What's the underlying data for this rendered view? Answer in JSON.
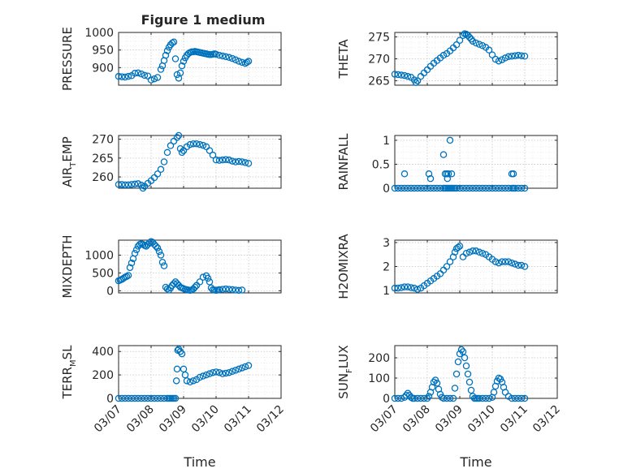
{
  "chart_data": {
    "title": "Figure 1 medium",
    "x_ticks": [
      "03/07",
      "03/08",
      "03/09",
      "03/10",
      "03/11",
      "03/12"
    ],
    "x_label": "Time",
    "series_color": "#0072bd",
    "panels": [
      {
        "type": "scatter",
        "ylabel": "PRESSURE",
        "ylim": [
          850,
          1000
        ],
        "yticks": [
          900,
          950,
          1000
        ],
        "grid": true,
        "x": [
          0.0,
          0.1,
          0.2,
          0.3,
          0.4,
          0.5,
          0.6,
          0.7,
          0.8,
          0.9,
          1.0,
          1.1,
          1.2,
          1.3,
          1.35,
          1.4,
          1.45,
          1.5,
          1.55,
          1.6,
          1.65,
          1.7,
          1.75,
          1.8,
          1.85,
          1.9,
          1.95,
          2.0,
          2.05,
          2.1,
          2.15,
          2.2,
          2.25,
          2.3,
          2.35,
          2.4,
          2.45,
          2.5,
          2.55,
          2.6,
          2.65,
          2.7,
          2.75,
          2.8,
          2.85,
          2.9,
          2.95,
          3.0,
          3.1,
          3.2,
          3.3,
          3.4,
          3.5,
          3.6,
          3.7,
          3.8,
          3.9,
          3.95,
          4.0
        ],
        "y": [
          875,
          874,
          873,
          875,
          877,
          884,
          885,
          882,
          878,
          876,
          865,
          868,
          872,
          895,
          905,
          920,
          935,
          948,
          958,
          965,
          970,
          973,
          925,
          880,
          870,
          885,
          905,
          918,
          928,
          935,
          940,
          943,
          945,
          945,
          946,
          945,
          944,
          943,
          942,
          941,
          940,
          939,
          938,
          937,
          937,
          938,
          939,
          938,
          935,
          933,
          931,
          929,
          926,
          922,
          918,
          915,
          912,
          915,
          918
        ]
      },
      {
        "type": "scatter",
        "ylabel": "THETA",
        "ylim": [
          264,
          276
        ],
        "yticks": [
          265,
          270,
          275
        ],
        "grid": true,
        "x": [
          0.0,
          0.1,
          0.2,
          0.3,
          0.4,
          0.5,
          0.6,
          0.65,
          0.7,
          0.8,
          0.9,
          1.0,
          1.1,
          1.2,
          1.3,
          1.4,
          1.5,
          1.6,
          1.7,
          1.8,
          1.9,
          2.0,
          2.1,
          2.15,
          2.2,
          2.25,
          2.3,
          2.35,
          2.4,
          2.5,
          2.6,
          2.7,
          2.8,
          2.9,
          3.0,
          3.1,
          3.2,
          3.3,
          3.4,
          3.5,
          3.6,
          3.7,
          3.8,
          3.9,
          4.0
        ],
        "y": [
          266.5,
          266.4,
          266.3,
          266.2,
          266.0,
          265.8,
          265.2,
          264.6,
          265.0,
          266.0,
          266.8,
          267.5,
          268.3,
          269.0,
          269.6,
          270.2,
          270.8,
          271.2,
          271.8,
          272.5,
          273.2,
          274.2,
          275.3,
          275.7,
          275.6,
          275.3,
          274.9,
          274.5,
          274.0,
          273.6,
          273.3,
          273.0,
          272.6,
          272.0,
          270.9,
          269.9,
          269.5,
          269.8,
          270.2,
          270.5,
          270.6,
          270.7,
          270.8,
          270.7,
          270.6
        ]
      },
      {
        "type": "scatter",
        "ylabel": "AIR_TEMP",
        "ylim": [
          257,
          271
        ],
        "yticks": [
          260,
          265,
          270
        ],
        "grid": true,
        "x": [
          0.0,
          0.1,
          0.2,
          0.3,
          0.4,
          0.5,
          0.6,
          0.7,
          0.75,
          0.8,
          0.9,
          1.0,
          1.1,
          1.2,
          1.3,
          1.4,
          1.5,
          1.6,
          1.7,
          1.8,
          1.85,
          1.9,
          1.95,
          2.0,
          2.1,
          2.2,
          2.3,
          2.4,
          2.5,
          2.6,
          2.7,
          2.8,
          2.9,
          3.0,
          3.1,
          3.2,
          3.3,
          3.4,
          3.5,
          3.6,
          3.7,
          3.8,
          3.9,
          4.0
        ],
        "y": [
          258.0,
          258.0,
          257.9,
          257.9,
          258.0,
          258.1,
          258.2,
          257.8,
          257.0,
          257.5,
          258.3,
          259.0,
          259.8,
          260.8,
          262.0,
          264.0,
          266.5,
          268.3,
          269.5,
          270.5,
          271.0,
          267.5,
          266.5,
          267.0,
          268.0,
          268.6,
          268.8,
          268.8,
          268.6,
          268.4,
          268.0,
          267.0,
          265.8,
          264.5,
          264.4,
          264.5,
          264.6,
          264.5,
          264.2,
          264.0,
          264.1,
          264.0,
          263.8,
          263.6
        ]
      },
      {
        "type": "scatter",
        "ylabel": "RAINFALL",
        "ylim": [
          0,
          1.1
        ],
        "yticks": [
          0,
          0.5,
          1
        ],
        "grid": true,
        "x": [
          0.0,
          0.1,
          0.2,
          0.3,
          0.4,
          0.5,
          0.6,
          0.7,
          0.8,
          0.9,
          1.0,
          1.1,
          1.2,
          1.3,
          1.4,
          1.5,
          1.55,
          1.6,
          1.65,
          1.7,
          1.75,
          1.8,
          1.85,
          1.9,
          2.0,
          2.1,
          2.2,
          2.3,
          2.4,
          2.5,
          2.6,
          2.7,
          2.8,
          2.9,
          3.0,
          3.1,
          3.2,
          3.3,
          3.4,
          3.5,
          3.6,
          3.65,
          3.7,
          3.8,
          3.9,
          4.0,
          0.3,
          1.05,
          1.1,
          1.5,
          1.55,
          1.6,
          1.62,
          1.65,
          1.7,
          1.75,
          3.6,
          3.65
        ],
        "y": [
          0,
          0,
          0,
          0,
          0,
          0,
          0,
          0,
          0,
          0,
          0,
          0,
          0,
          0,
          0,
          0,
          0,
          0,
          0,
          0,
          0,
          0,
          0,
          0,
          0,
          0,
          0,
          0,
          0,
          0,
          0,
          0,
          0,
          0,
          0,
          0,
          0,
          0,
          0,
          0,
          0,
          0,
          0,
          0,
          0,
          0,
          0.3,
          0.3,
          0.2,
          0.7,
          0.3,
          0.3,
          0.2,
          0.3,
          1.0,
          0.3,
          0.3,
          0.3
        ]
      },
      {
        "type": "scatter",
        "ylabel": "MIXDEPTH",
        "ylim": [
          -60,
          1420
        ],
        "yticks": [
          0,
          500,
          1000
        ],
        "grid": true,
        "x": [
          0.0,
          0.05,
          0.1,
          0.15,
          0.2,
          0.25,
          0.3,
          0.35,
          0.4,
          0.45,
          0.5,
          0.55,
          0.6,
          0.65,
          0.7,
          0.75,
          0.8,
          0.85,
          0.9,
          0.95,
          1.0,
          1.05,
          1.1,
          1.15,
          1.2,
          1.25,
          1.3,
          1.35,
          1.4,
          1.45,
          1.5,
          1.55,
          1.6,
          1.65,
          1.7,
          1.75,
          1.8,
          1.85,
          1.9,
          1.95,
          2.0,
          2.05,
          2.1,
          2.15,
          2.2,
          2.25,
          2.3,
          2.35,
          2.4,
          2.5,
          2.6,
          2.7,
          2.75,
          2.8,
          2.85,
          2.9,
          2.95,
          3.0,
          3.05,
          3.1,
          3.2,
          3.3,
          3.4,
          3.5,
          3.6,
          3.7,
          3.8
        ],
        "y": [
          280,
          300,
          320,
          350,
          380,
          400,
          430,
          650,
          780,
          900,
          1050,
          1150,
          1250,
          1300,
          1320,
          1300,
          1270,
          1250,
          1300,
          1350,
          1380,
          1360,
          1300,
          1250,
          1200,
          1100,
          1000,
          800,
          700,
          100,
          50,
          20,
          80,
          150,
          200,
          250,
          200,
          150,
          100,
          80,
          60,
          40,
          30,
          20,
          10,
          20,
          50,
          100,
          150,
          250,
          380,
          420,
          350,
          250,
          80,
          30,
          20,
          10,
          20,
          30,
          40,
          50,
          40,
          30,
          20,
          10,
          20
        ]
      },
      {
        "type": "scatter",
        "ylabel": "H2OMIXRA",
        "ylim": [
          0.9,
          3.1
        ],
        "yticks": [
          1,
          2,
          3
        ],
        "grid": true,
        "x": [
          0.0,
          0.1,
          0.2,
          0.3,
          0.4,
          0.5,
          0.6,
          0.7,
          0.8,
          0.9,
          1.0,
          1.1,
          1.2,
          1.3,
          1.4,
          1.5,
          1.6,
          1.7,
          1.8,
          1.85,
          1.9,
          1.95,
          2.0,
          2.1,
          2.2,
          2.3,
          2.4,
          2.5,
          2.6,
          2.7,
          2.8,
          2.9,
          3.0,
          3.1,
          3.2,
          3.3,
          3.4,
          3.5,
          3.6,
          3.7,
          3.8,
          3.9,
          4.0
        ],
        "y": [
          1.1,
          1.1,
          1.12,
          1.15,
          1.15,
          1.12,
          1.1,
          1.05,
          1.1,
          1.2,
          1.3,
          1.4,
          1.5,
          1.6,
          1.7,
          1.85,
          2.0,
          2.2,
          2.4,
          2.6,
          2.75,
          2.8,
          2.85,
          2.4,
          2.55,
          2.6,
          2.65,
          2.65,
          2.6,
          2.55,
          2.5,
          2.4,
          2.3,
          2.2,
          2.15,
          2.2,
          2.2,
          2.2,
          2.15,
          2.1,
          2.05,
          2.05,
          2.0
        ]
      },
      {
        "type": "scatter",
        "ylabel": "TERR_MSL",
        "ylim": [
          0,
          450
        ],
        "yticks": [
          0,
          200,
          400
        ],
        "grid": true,
        "x": [
          0.0,
          0.1,
          0.2,
          0.3,
          0.4,
          0.5,
          0.6,
          0.7,
          0.8,
          0.9,
          1.0,
          1.1,
          1.2,
          1.3,
          1.4,
          1.5,
          1.55,
          1.6,
          1.65,
          1.7,
          1.75,
          1.78,
          1.8,
          1.82,
          1.85,
          1.9,
          1.95,
          2.0,
          2.05,
          2.1,
          2.2,
          2.3,
          2.4,
          2.5,
          2.6,
          2.7,
          2.8,
          2.9,
          3.0,
          3.1,
          3.2,
          3.3,
          3.4,
          3.5,
          3.6,
          3.7,
          3.8,
          3.9,
          4.0
        ],
        "y": [
          0,
          0,
          0,
          0,
          0,
          0,
          0,
          0,
          0,
          0,
          0,
          0,
          0,
          0,
          0,
          0,
          0,
          0,
          0,
          0,
          0,
          150,
          250,
          410,
          420,
          400,
          380,
          250,
          200,
          150,
          140,
          150,
          160,
          180,
          190,
          200,
          210,
          220,
          225,
          220,
          210,
          215,
          220,
          230,
          240,
          250,
          260,
          270,
          280
        ]
      },
      {
        "type": "scatter",
        "ylabel": "SUN_FLUX",
        "ylim": [
          0,
          260
        ],
        "yticks": [
          0,
          100,
          200
        ],
        "grid": true,
        "x": [
          0.0,
          0.1,
          0.2,
          0.3,
          0.35,
          0.4,
          0.45,
          0.5,
          0.55,
          0.6,
          0.7,
          0.8,
          0.9,
          1.0,
          1.05,
          1.1,
          1.15,
          1.2,
          1.25,
          1.3,
          1.35,
          1.4,
          1.45,
          1.5,
          1.6,
          1.7,
          1.8,
          1.85,
          1.9,
          1.95,
          2.0,
          2.05,
          2.1,
          2.15,
          2.2,
          2.25,
          2.3,
          2.35,
          2.4,
          2.45,
          2.5,
          2.55,
          2.6,
          2.7,
          2.8,
          2.9,
          3.0,
          3.05,
          3.1,
          3.15,
          3.2,
          3.25,
          3.3,
          3.35,
          3.4,
          3.5,
          3.6,
          3.7,
          3.8,
          3.9,
          4.0
        ],
        "y": [
          0,
          0,
          0,
          5,
          15,
          25,
          15,
          5,
          0,
          0,
          0,
          0,
          0,
          0,
          10,
          30,
          55,
          80,
          90,
          75,
          45,
          20,
          5,
          0,
          0,
          0,
          0,
          50,
          120,
          180,
          220,
          240,
          230,
          200,
          160,
          120,
          80,
          40,
          10,
          0,
          0,
          0,
          0,
          0,
          0,
          0,
          5,
          30,
          60,
          85,
          100,
          95,
          80,
          55,
          30,
          10,
          0,
          0,
          0,
          0,
          0
        ]
      }
    ]
  }
}
